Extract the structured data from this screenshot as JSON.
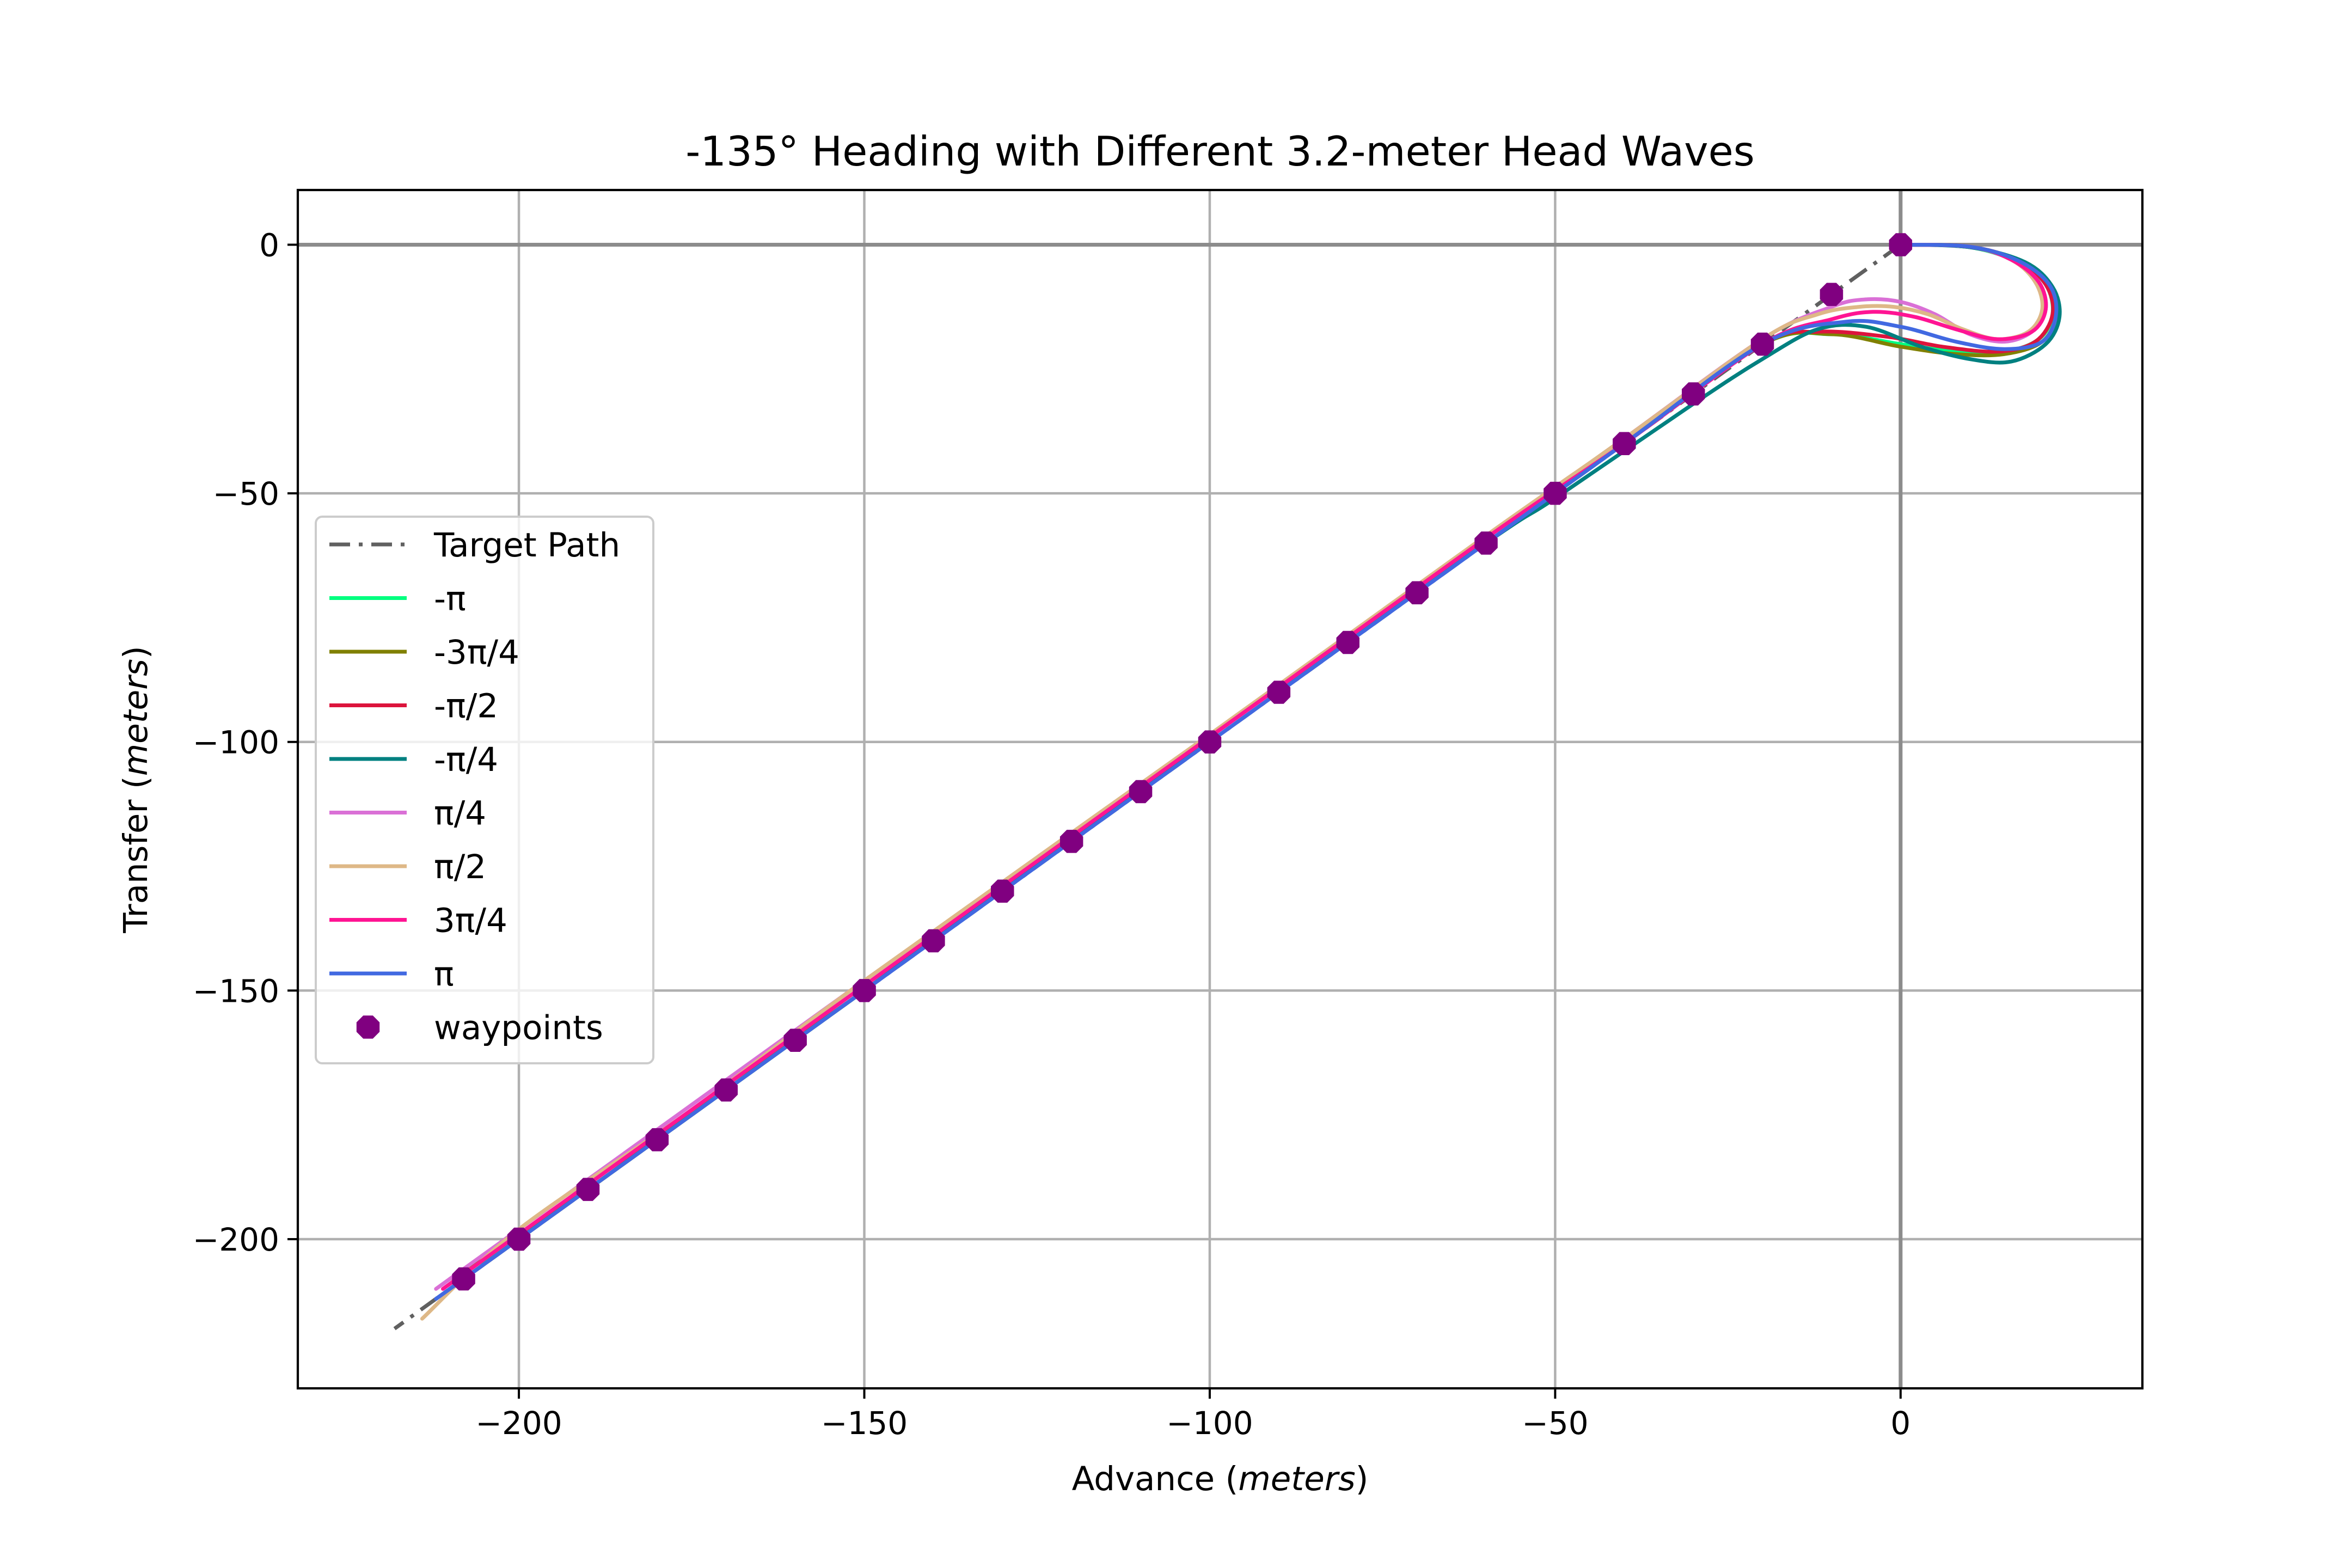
{
  "chart_data": {
    "type": "line",
    "title": "-135° Heading with Different 3.2-meter Head Waves",
    "xlabel": "Advance",
    "xlabel_unit": "meters",
    "ylabel": "Transfer",
    "ylabel_unit": "meters",
    "xlim": [
      -232,
      35
    ],
    "ylim": [
      -230,
      11
    ],
    "xticks": [
      -200,
      -150,
      -100,
      -50,
      0
    ],
    "yticks": [
      0,
      -50,
      -100,
      -150,
      -200
    ],
    "xtick_labels": [
      "−200",
      "−150",
      "−100",
      "−50",
      "0"
    ],
    "ytick_labels": [
      "0",
      "−50",
      "−100",
      "−150",
      "−200"
    ],
    "grid": true,
    "legend_position": "center-left",
    "legend": [
      "Target Path",
      "-π",
      "-3π/4",
      "-π/2",
      "-π/4",
      "π/4",
      "π/2",
      "3π/4",
      "π",
      "waypoints"
    ],
    "target_path": {
      "name": "Target Path",
      "color": "#606060",
      "style": "dash-dot",
      "x": [
        0,
        -218
      ],
      "y": [
        0,
        -218
      ]
    },
    "series": [
      {
        "name": "-π",
        "color": "#00ff7f",
        "x": [
          0,
          10,
          17,
          21,
          22,
          20,
          15,
          8,
          0,
          -10,
          -20,
          -40,
          -60,
          -100,
          -150,
          -190,
          -210
        ],
        "y": [
          0,
          -0.5,
          -3.5,
          -8,
          -14,
          -19,
          -21.5,
          -21.5,
          -20,
          -18,
          -20,
          -39,
          -59,
          -99,
          -150,
          -190,
          -209
        ]
      },
      {
        "name": "-3π/4",
        "color": "#808000",
        "x": [
          0,
          10,
          17,
          21.5,
          22.5,
          20.5,
          15,
          8,
          0,
          -10,
          -20,
          -40,
          -60,
          -100,
          -150,
          -170,
          -190,
          -210
        ],
        "y": [
          0,
          -0.4,
          -3.2,
          -8,
          -14,
          -19.5,
          -22,
          -22,
          -20.5,
          -18,
          -20,
          -39,
          -59,
          -99,
          -150,
          -169,
          -190,
          -208
        ]
      },
      {
        "name": "-π/2",
        "color": "#dc143c",
        "x": [
          0,
          10,
          17,
          21,
          22,
          19.5,
          14,
          6,
          -2,
          -12,
          -20,
          -40,
          -60,
          -100,
          -150,
          -190,
          -210
        ],
        "y": [
          0,
          -0.4,
          -3.2,
          -8,
          -14,
          -19.5,
          -21.5,
          -20.5,
          -18.5,
          -17.5,
          -20,
          -39,
          -59,
          -99,
          -150,
          -190,
          -210
        ]
      },
      {
        "name": "-π/4",
        "color": "#008080",
        "x": [
          0,
          10,
          18,
          22,
          23,
          21,
          16,
          10,
          3,
          -5,
          -12,
          -20,
          -30,
          -50,
          -60,
          -100,
          -150,
          -190,
          -208
        ],
        "y": [
          0,
          -0.5,
          -3.5,
          -8.5,
          -14.5,
          -20,
          -23.5,
          -23,
          -20.5,
          -16.5,
          -17,
          -23,
          -32,
          -51,
          -60,
          -99,
          -150,
          -190,
          -208
        ]
      },
      {
        "name": "π/4",
        "color": "#da70d6",
        "x": [
          0,
          10,
          16,
          20,
          21,
          19,
          15,
          10,
          5,
          0,
          -5,
          -10,
          -20,
          -40,
          -60,
          -85,
          -90,
          -100,
          -150,
          -190,
          -212
        ],
        "y": [
          0,
          -0.4,
          -3,
          -7.5,
          -13,
          -17.5,
          -19.5,
          -18,
          -14,
          -11.5,
          -11,
          -12.5,
          -19,
          -39,
          -59,
          -84,
          -89,
          -99,
          -148,
          -188,
          -210
        ]
      },
      {
        "name": "π/2",
        "color": "#deb887",
        "x": [
          0,
          10,
          16,
          19.5,
          20.5,
          18.5,
          14,
          9,
          4,
          -1,
          -6,
          -12,
          -20,
          -40,
          -60,
          -100,
          -150,
          -175,
          -200,
          -214
        ],
        "y": [
          0,
          -0.4,
          -3,
          -7.5,
          -13,
          -17.5,
          -19,
          -17,
          -14,
          -12.5,
          -12.5,
          -14,
          -19,
          -39,
          -58.5,
          -98.5,
          -148,
          -174,
          -198,
          -216
        ]
      },
      {
        "name": "3π/4",
        "color": "#ff1493",
        "x": [
          0,
          10,
          16,
          20,
          21,
          19,
          14,
          8,
          2,
          -4,
          -10,
          -20,
          -40,
          -60,
          -100,
          -150,
          -190,
          -211
        ],
        "y": [
          0,
          -0.4,
          -3,
          -7.5,
          -13,
          -17.5,
          -19,
          -17,
          -14.5,
          -13.5,
          -15,
          -20,
          -40,
          -59,
          -99,
          -149,
          -189,
          -210
        ]
      },
      {
        "name": "π",
        "color": "#4169e1",
        "x": [
          0,
          10,
          17,
          21.5,
          22.5,
          20.5,
          15,
          8,
          0,
          -8,
          -20,
          -40,
          -60,
          -100,
          -150,
          -190,
          -212
        ],
        "y": [
          0,
          -0.4,
          -3.2,
          -8,
          -14,
          -19.5,
          -21,
          -19.5,
          -16.5,
          -15.5,
          -20,
          -40,
          -60,
          -100,
          -150,
          -190,
          -212
        ]
      }
    ],
    "waypoints": {
      "name": "waypoints",
      "color": "#800080",
      "x": [
        0,
        -10,
        -20,
        -30,
        -40,
        -50,
        -60,
        -70,
        -80,
        -90,
        -100,
        -110,
        -120,
        -130,
        -140,
        -150,
        -160,
        -170,
        -180,
        -190,
        -200,
        -208
      ],
      "y": [
        0,
        -10,
        -20,
        -30,
        -40,
        -50,
        -60,
        -70,
        -80,
        -90,
        -100,
        -110,
        -120,
        -130,
        -140,
        -150,
        -160,
        -170,
        -180,
        -190,
        -200,
        -208
      ]
    }
  }
}
